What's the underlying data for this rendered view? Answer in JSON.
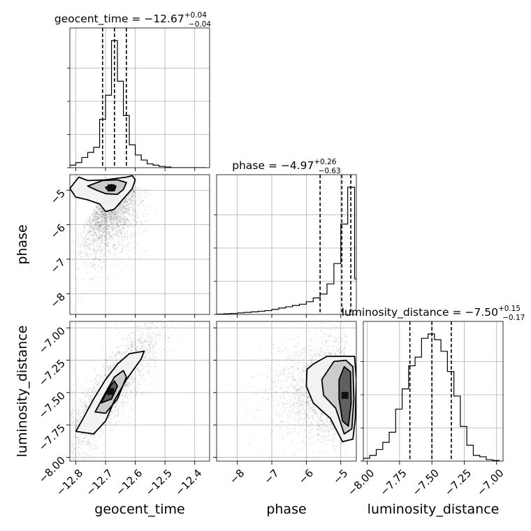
{
  "chart_data": {
    "type": "corner",
    "grid": true,
    "parameters": [
      {
        "name": "geocent_time",
        "axis_label": "geocent_time",
        "range": [
          -12.82,
          -12.35
        ],
        "ticks": [
          -12.8,
          -12.7,
          -12.6,
          -12.5,
          -12.4
        ],
        "tick_labels": [
          "−12.8",
          "−12.7",
          "−12.6",
          "−12.5",
          "−12.4"
        ]
      },
      {
        "name": "phase",
        "axis_label": "phase",
        "range": [
          -8.6,
          -4.55
        ],
        "ticks": [
          -8,
          -7,
          -6,
          -5
        ],
        "tick_labels": [
          "−8",
          "−7",
          "−6",
          "−5"
        ]
      },
      {
        "name": "luminosity_distance",
        "axis_label": "luminosity_distance",
        "range": [
          -8.03,
          -6.95
        ],
        "ticks": [
          -8.0,
          -7.75,
          -7.5,
          -7.25,
          -7.0
        ],
        "tick_labels": [
          "−8.00",
          "−7.75",
          "−7.50",
          "−7.25",
          "−7.00"
        ]
      }
    ],
    "titles": [
      {
        "prefix": "geocent_time = −12.67",
        "sup": "+0.04",
        "sub": "−0.04"
      },
      {
        "prefix": "phase = −4.97",
        "sup": "+0.26",
        "sub": "−0.63"
      },
      {
        "prefix": "luminosity_distance = −7.50",
        "sup": "+0.15",
        "sub": "−0.17"
      }
    ],
    "quantiles": [
      [
        -12.71,
        -12.67,
        -12.63
      ],
      [
        -5.6,
        -4.97,
        -4.71
      ],
      [
        -7.67,
        -7.5,
        -7.35
      ]
    ],
    "histograms": [
      {
        "bin_edges": [
          -12.82,
          -12.8,
          -12.78,
          -12.76,
          -12.74,
          -12.72,
          -12.7,
          -12.68,
          -12.66,
          -12.64,
          -12.62,
          -12.6,
          -12.58,
          -12.56,
          -12.54,
          -12.52,
          -12.5,
          -12.48,
          -12.46,
          -12.44,
          -12.42,
          -12.4,
          -12.38,
          -12.36
        ],
        "counts": [
          0.02,
          0.04,
          0.08,
          0.12,
          0.16,
          0.38,
          0.57,
          1.0,
          0.68,
          0.41,
          0.18,
          0.1,
          0.06,
          0.03,
          0.02,
          0.01,
          0.005,
          0,
          0,
          0,
          0,
          0,
          0
        ]
      },
      {
        "bin_edges": [
          -8.6,
          -8.4,
          -8.2,
          -8.0,
          -7.8,
          -7.6,
          -7.4,
          -7.2,
          -7.0,
          -6.8,
          -6.6,
          -6.4,
          -6.2,
          -6.0,
          -5.8,
          -5.6,
          -5.4,
          -5.2,
          -5.0,
          -4.8,
          -4.6,
          -4.4
        ],
        "counts": [
          0.002,
          0.005,
          0.008,
          0.012,
          0.016,
          0.02,
          0.025,
          0.03,
          0.04,
          0.05,
          0.06,
          0.07,
          0.08,
          0.1,
          0.13,
          0.16,
          0.24,
          0.4,
          0.71,
          1.0,
          0.28
        ]
      },
      {
        "bin_edges": [
          -8.03,
          -7.98,
          -7.93,
          -7.88,
          -7.83,
          -7.78,
          -7.73,
          -7.68,
          -7.63,
          -7.58,
          -7.53,
          -7.48,
          -7.43,
          -7.38,
          -7.33,
          -7.28,
          -7.23,
          -7.18,
          -7.13,
          -7.08,
          -7.03,
          -6.98
        ],
        "counts": [
          0.02,
          0.04,
          0.08,
          0.13,
          0.2,
          0.36,
          0.5,
          0.66,
          0.72,
          0.85,
          0.88,
          0.84,
          0.76,
          0.62,
          0.45,
          0.24,
          0.11,
          0.04,
          0.03,
          0.01,
          0.005
        ]
      }
    ],
    "scatter_2d": [
      {
        "x": "geocent_time",
        "y": "phase",
        "n_points": 2600,
        "seed": 7,
        "description_centroid": [
          -12.67,
          -5.0
        ]
      },
      {
        "x": "geocent_time",
        "y": "luminosity_distance",
        "n_points": 2600,
        "seed": 11
      },
      {
        "x": "phase",
        "y": "luminosity_distance",
        "n_points": 2600,
        "seed": 19
      }
    ],
    "contours_2d": [
      {
        "x": "geocent_time",
        "y": "phase",
        "levels": [
          [
            [
              -12.79,
              -4.62
            ],
            [
              -12.76,
              -4.72
            ],
            [
              -12.7,
              -4.7
            ],
            [
              -12.63,
              -4.62
            ],
            [
              -12.61,
              -4.58
            ],
            [
              -12.6,
              -4.7
            ],
            [
              -12.61,
              -4.95
            ],
            [
              -12.63,
              -5.15
            ],
            [
              -12.65,
              -5.35
            ],
            [
              -12.67,
              -5.55
            ],
            [
              -12.7,
              -5.62
            ],
            [
              -12.72,
              -5.4
            ],
            [
              -12.76,
              -5.28
            ],
            [
              -12.8,
              -5.2
            ],
            [
              -12.82,
              -4.95
            ]
          ],
          [
            [
              -12.76,
              -4.88
            ],
            [
              -12.71,
              -4.72
            ],
            [
              -12.66,
              -4.7
            ],
            [
              -12.63,
              -4.78
            ],
            [
              -12.64,
              -4.98
            ],
            [
              -12.66,
              -5.12
            ],
            [
              -12.7,
              -5.1
            ],
            [
              -12.73,
              -5.0
            ]
          ],
          [
            [
              -12.7,
              -4.92
            ],
            [
              -12.68,
              -4.84
            ],
            [
              -12.665,
              -4.88
            ],
            [
              -12.67,
              -5.0
            ],
            [
              -12.69,
              -5.02
            ]
          ]
        ]
      },
      {
        "x": "geocent_time",
        "y": "luminosity_distance",
        "levels": [
          [
            [
              -12.8,
              -7.8
            ],
            [
              -12.78,
              -7.72
            ],
            [
              -12.74,
              -7.55
            ],
            [
              -12.7,
              -7.4
            ],
            [
              -12.66,
              -7.28
            ],
            [
              -12.62,
              -7.2
            ],
            [
              -12.57,
              -7.18
            ],
            [
              -12.58,
              -7.24
            ],
            [
              -12.63,
              -7.4
            ],
            [
              -12.67,
              -7.56
            ],
            [
              -12.7,
              -7.72
            ],
            [
              -12.74,
              -7.82
            ]
          ],
          [
            [
              -12.735,
              -7.65
            ],
            [
              -12.7,
              -7.5
            ],
            [
              -12.67,
              -7.38
            ],
            [
              -12.64,
              -7.33
            ],
            [
              -12.63,
              -7.38
            ],
            [
              -12.66,
              -7.55
            ],
            [
              -12.7,
              -7.66
            ]
          ],
          [
            [
              -12.715,
              -7.58
            ],
            [
              -12.69,
              -7.47
            ],
            [
              -12.67,
              -7.41
            ],
            [
              -12.66,
              -7.45
            ],
            [
              -12.68,
              -7.55
            ]
          ]
        ]
      },
      {
        "x": "phase",
        "y": "luminosity_distance",
        "levels": [
          [
            [
              -5.98,
              -7.32
            ],
            [
              -5.8,
              -7.28
            ],
            [
              -5.4,
              -7.22
            ],
            [
              -5.0,
              -7.22
            ],
            [
              -4.6,
              -7.22
            ],
            [
              -4.55,
              -7.4
            ],
            [
              -4.58,
              -7.7
            ],
            [
              -4.65,
              -7.86
            ],
            [
              -4.95,
              -7.88
            ],
            [
              -5.3,
              -7.7
            ],
            [
              -5.8,
              -7.58
            ],
            [
              -6.0,
              -7.45
            ]
          ],
          [
            [
              -5.55,
              -7.4
            ],
            [
              -5.2,
              -7.26
            ],
            [
              -4.85,
              -7.25
            ],
            [
              -4.65,
              -7.3
            ],
            [
              -4.62,
              -7.55
            ],
            [
              -4.68,
              -7.78
            ],
            [
              -4.9,
              -7.82
            ],
            [
              -5.15,
              -7.62
            ],
            [
              -5.5,
              -7.52
            ]
          ],
          [
            [
              -5.05,
              -7.4
            ],
            [
              -4.9,
              -7.3
            ],
            [
              -4.72,
              -7.34
            ],
            [
              -4.7,
              -7.58
            ],
            [
              -4.78,
              -7.76
            ],
            [
              -4.95,
              -7.72
            ],
            [
              -5.05,
              -7.55
            ]
          ]
        ]
      }
    ]
  }
}
